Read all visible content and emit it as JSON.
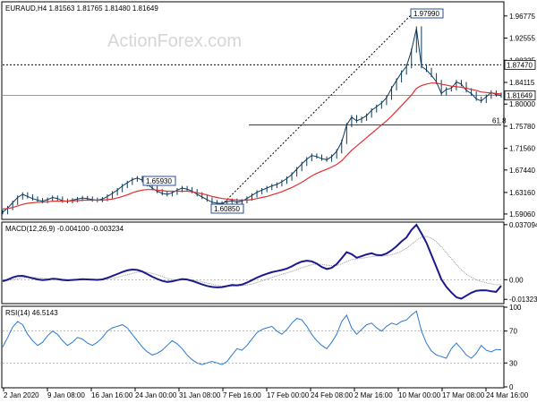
{
  "chart_data": {
    "type": "line",
    "title": "EURAUD,H4  1.81563 1.81765 1.81480 1.81649",
    "watermark": "ActionForex.com",
    "x_labels": [
      "2 Jan 2020",
      "9 Jan 08:00",
      "16 Jan 16:00",
      "24 Jan 00:00",
      "31 Jan 08:00",
      "7 Feb 16:00",
      "17 Feb 00:00",
      "24 Feb 08:00",
      "2 Mar 16:00",
      "10 Mar 00:00",
      "17 Mar 08:00",
      "24 Mar 16:00"
    ],
    "price_panel": {
      "ylim": [
        1.582,
        1.993
      ],
      "tick_labels": [
        "1.96775",
        "1.92555",
        "1.88335",
        "1.84115",
        "1.80000",
        "1.75780",
        "1.71560",
        "1.67440",
        "1.63160",
        "1.59060"
      ],
      "tick_values": [
        1.96775,
        1.92555,
        1.88335,
        1.84115,
        1.8,
        1.7578,
        1.7156,
        1.6744,
        1.6316,
        1.5906
      ],
      "current_price": "1.81649",
      "resistance_level": "1.87470",
      "fib_label": "61.8",
      "fib_value": 1.76,
      "annotations": [
        {
          "text": "1.97990",
          "value": 1.9799
        },
        {
          "text": "1.65930",
          "value": 1.6593
        },
        {
          "text": "1.60850",
          "value": 1.6085
        }
      ],
      "close_series": [
        1.594,
        1.602,
        1.612,
        1.622,
        1.628,
        1.624,
        1.62,
        1.617,
        1.615,
        1.618,
        1.622,
        1.62,
        1.616,
        1.615,
        1.617,
        1.619,
        1.621,
        1.62,
        1.618,
        1.617,
        1.619,
        1.624,
        1.63,
        1.636,
        1.644,
        1.65,
        1.656,
        1.659,
        1.655,
        1.647,
        1.64,
        1.634,
        1.63,
        1.628,
        1.631,
        1.636,
        1.64,
        1.638,
        1.634,
        1.628,
        1.623,
        1.618,
        1.613,
        1.611,
        1.611,
        1.614,
        1.616,
        1.613,
        1.615,
        1.62,
        1.626,
        1.632,
        1.636,
        1.64,
        1.644,
        1.647,
        1.652,
        1.658,
        1.666,
        1.676,
        1.686,
        1.695,
        1.702,
        1.7,
        1.696,
        1.694,
        1.7,
        1.71,
        1.728,
        1.76,
        1.775,
        1.768,
        1.772,
        1.778,
        1.788,
        1.795,
        1.802,
        1.812,
        1.83,
        1.845,
        1.86,
        1.872,
        1.902,
        1.944,
        1.872,
        1.865,
        1.855,
        1.842,
        1.82,
        1.828,
        1.83,
        1.842,
        1.838,
        1.826,
        1.82,
        1.81,
        1.806,
        1.814,
        1.822,
        1.818,
        1.816
      ],
      "ma_series": [
        1.6,
        1.601,
        1.603,
        1.606,
        1.609,
        1.611,
        1.612,
        1.613,
        1.613,
        1.614,
        1.615,
        1.615,
        1.615,
        1.615,
        1.616,
        1.616,
        1.617,
        1.617,
        1.617,
        1.617,
        1.617,
        1.618,
        1.619,
        1.621,
        1.624,
        1.627,
        1.631,
        1.634,
        1.636,
        1.637,
        1.637,
        1.636,
        1.635,
        1.634,
        1.634,
        1.634,
        1.634,
        1.634,
        1.633,
        1.631,
        1.629,
        1.627,
        1.624,
        1.622,
        1.62,
        1.619,
        1.618,
        1.617,
        1.617,
        1.617,
        1.618,
        1.62,
        1.622,
        1.624,
        1.627,
        1.63,
        1.633,
        1.637,
        1.641,
        1.646,
        1.651,
        1.657,
        1.663,
        1.668,
        1.672,
        1.676,
        1.68,
        1.685,
        1.692,
        1.702,
        1.712,
        1.72,
        1.728,
        1.736,
        1.744,
        1.752,
        1.76,
        1.768,
        1.777,
        1.787,
        1.797,
        1.807,
        1.817,
        1.83,
        1.835,
        1.838,
        1.84,
        1.84,
        1.838,
        1.836,
        1.834,
        1.833,
        1.832,
        1.83,
        1.828,
        1.826,
        1.823,
        1.822,
        1.821,
        1.82,
        1.819
      ]
    },
    "macd_panel": {
      "title": "MACD(12,26,9) -0.004100 -0.003234",
      "ylim": [
        -0.0155,
        0.0382
      ],
      "tick_labels": [
        "0.037094",
        "0.00",
        "-0.013231"
      ],
      "tick_values": [
        0.037094,
        0.0,
        -0.013231
      ],
      "macd_series": [
        -0.001,
        0.0,
        0.0015,
        0.0025,
        0.0026,
        0.0018,
        0.001,
        0.0002,
        -0.0003,
        0.0,
        0.0006,
        0.0004,
        -0.0002,
        -0.0004,
        -0.0002,
        0.0,
        0.0003,
        0.0002,
        0.0,
        -0.0001,
        0.0002,
        0.0012,
        0.0025,
        0.0038,
        0.0052,
        0.0063,
        0.0068,
        0.0066,
        0.0055,
        0.0038,
        0.002,
        0.0005,
        -0.0008,
        -0.0015,
        -0.0011,
        -0.0003,
        0.0004,
        0.0001,
        -0.0008,
        -0.002,
        -0.0032,
        -0.0042,
        -0.0049,
        -0.0052,
        -0.005,
        -0.0043,
        -0.0036,
        -0.0038,
        -0.0033,
        -0.002,
        -0.0003,
        0.0014,
        0.0028,
        0.004,
        0.0051,
        0.0058,
        0.0065,
        0.0075,
        0.009,
        0.0108,
        0.0122,
        0.0128,
        0.0124,
        0.0108,
        0.0086,
        0.0072,
        0.008,
        0.0105,
        0.0145,
        0.0185,
        0.0172,
        0.0148,
        0.0158,
        0.017,
        0.0178,
        0.0166,
        0.0165,
        0.0176,
        0.0198,
        0.0225,
        0.0258,
        0.0285,
        0.0335,
        0.037,
        0.0312,
        0.025,
        0.0168,
        0.0085,
        0.0002,
        -0.0048,
        -0.0086,
        -0.0118,
        -0.0128,
        -0.0108,
        -0.0088,
        -0.0075,
        -0.0071,
        -0.0072,
        -0.0078,
        -0.0082,
        -0.0041
      ],
      "signal_series": [
        -0.0005,
        -0.0003,
        0.0,
        0.0006,
        0.0012,
        0.0016,
        0.0016,
        0.0014,
        0.001,
        0.0007,
        0.0006,
        0.0006,
        0.0004,
        0.0002,
        0.0,
        -0.0001,
        0.0,
        0.0001,
        0.0001,
        0.0,
        0.0,
        0.0003,
        0.0008,
        0.0015,
        0.0024,
        0.0034,
        0.0043,
        0.005,
        0.0053,
        0.005,
        0.0043,
        0.0033,
        0.0022,
        0.001,
        0.0002,
        -0.0002,
        -0.0002,
        -0.0001,
        -0.0003,
        -0.0008,
        -0.0015,
        -0.0023,
        -0.0031,
        -0.0038,
        -0.0043,
        -0.0045,
        -0.0044,
        -0.0042,
        -0.004,
        -0.0036,
        -0.0029,
        -0.0019,
        -0.0008,
        0.0003,
        0.0015,
        0.0026,
        0.0036,
        0.0046,
        0.0056,
        0.0068,
        0.008,
        0.0091,
        0.01,
        0.0105,
        0.0104,
        0.0098,
        0.0094,
        0.0096,
        0.0106,
        0.0122,
        0.0135,
        0.014,
        0.0144,
        0.015,
        0.0155,
        0.0158,
        0.0159,
        0.0162,
        0.0168,
        0.0178,
        0.0193,
        0.0212,
        0.0237,
        0.0265,
        0.0287,
        0.0292,
        0.028,
        0.0255,
        0.0221,
        0.0182,
        0.0142,
        0.0102,
        0.0066,
        0.0038,
        0.0016,
        0.0,
        -0.0012,
        -0.0021,
        -0.0028,
        -0.0035,
        -0.0032
      ]
    },
    "rsi_panel": {
      "title": "RSI(14) 46.5143",
      "ylim": [
        0,
        100
      ],
      "tick_labels": [
        "100",
        "70",
        "30",
        "0"
      ],
      "tick_values": [
        100,
        70,
        30,
        0
      ],
      "rsi_series": [
        50,
        62,
        75,
        82,
        78,
        66,
        58,
        52,
        56,
        64,
        70,
        66,
        58,
        52,
        56,
        62,
        60,
        55,
        52,
        56,
        62,
        70,
        74,
        76,
        78,
        74,
        66,
        58,
        50,
        44,
        40,
        42,
        46,
        52,
        58,
        54,
        48,
        40,
        34,
        30,
        28,
        30,
        32,
        30,
        28,
        32,
        40,
        48,
        46,
        52,
        60,
        68,
        72,
        74,
        76,
        70,
        66,
        72,
        80,
        86,
        84,
        76,
        66,
        58,
        52,
        48,
        56,
        66,
        82,
        90,
        74,
        66,
        72,
        78,
        80,
        74,
        70,
        76,
        80,
        78,
        82,
        84,
        90,
        95,
        70,
        55,
        45,
        40,
        38,
        36,
        48,
        55,
        48,
        40,
        36,
        42,
        52,
        46,
        44,
        47,
        46.5
      ]
    }
  }
}
